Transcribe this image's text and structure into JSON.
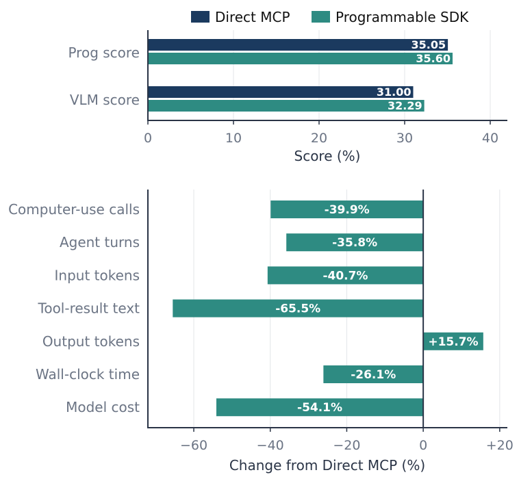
{
  "legend": {
    "position": "top",
    "items": [
      {
        "label": "Direct MCP",
        "color": "#1b3a5f"
      },
      {
        "label": "Programmable SDK",
        "color": "#2e8b82"
      }
    ]
  },
  "colors": {
    "axis": "#2a3446",
    "tick_label": "#6b7484",
    "axis_label": "#2a3446",
    "grid": "#e3e5e8",
    "bar_text": "#ffffff"
  },
  "chart_data": [
    {
      "type": "bar",
      "orientation": "horizontal",
      "categories": [
        "Prog score",
        "VLM score"
      ],
      "series": [
        {
          "name": "Direct MCP",
          "values": [
            35.05,
            31.0
          ],
          "labels": [
            "35.05",
            "31.00"
          ]
        },
        {
          "name": "Programmable SDK",
          "values": [
            35.6,
            32.29
          ],
          "labels": [
            "35.60",
            "32.29"
          ]
        }
      ],
      "xlabel": "Score (%)",
      "ylabel": "",
      "xlim": [
        0,
        42
      ],
      "xticks": [
        0,
        10,
        20,
        30,
        40
      ],
      "xtick_labels": [
        "0",
        "10",
        "20",
        "30",
        "40"
      ],
      "grid": "vertical"
    },
    {
      "type": "bar",
      "orientation": "horizontal",
      "categories": [
        "Computer-use calls",
        "Agent turns",
        "Input tokens",
        "Tool-result text",
        "Output tokens",
        "Wall-clock time",
        "Model cost"
      ],
      "values": [
        -39.9,
        -35.8,
        -40.7,
        -65.5,
        15.7,
        -26.1,
        -54.1
      ],
      "labels": [
        "-39.9%",
        "-35.8%",
        "-40.7%",
        "-65.5%",
        "+15.7%",
        "-26.1%",
        "-54.1%"
      ],
      "xlabel": "Change from Direct MCP (%)",
      "ylabel": "",
      "xlim": [
        -72,
        22
      ],
      "xticks": [
        -60,
        -40,
        -20,
        0,
        20
      ],
      "xtick_labels": [
        "−60",
        "−40",
        "−20",
        "0",
        "+20"
      ],
      "reference_line": 0,
      "grid": "vertical"
    }
  ]
}
